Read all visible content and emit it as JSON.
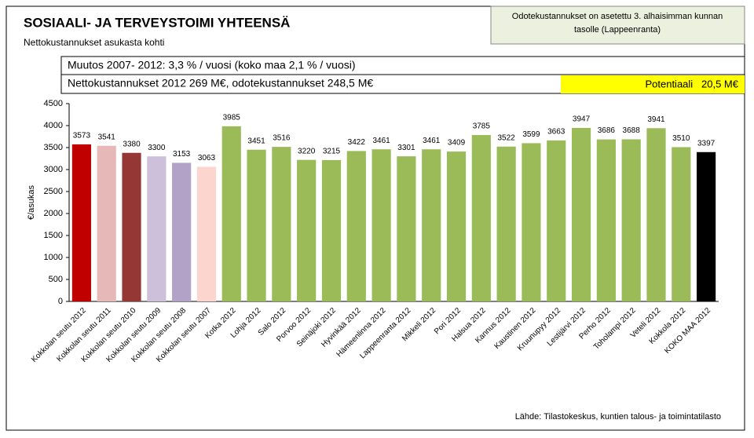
{
  "chart_data": {
    "type": "bar",
    "title": "SOSIAALI- JA TERVEYSTOIMI YHTEENSÄ",
    "subtitle": "Nettokustannukset  asukasta kohti",
    "note": [
      "Odotekustannukset on asetettu 3. alhaisimman kunnan",
      "tasolle (Lappeenranta)"
    ],
    "annotations": [
      "Muutos 2007- 2012: 3,3 % / vuosi (koko maa 2,1 % / vuosi)",
      "Nettokustannukset 2012 269 M€, odotekustannukset 248,5 M€",
      "Potentiaali   20,5 M€"
    ],
    "ylabel": "€/asukas",
    "source": "Lähde: Tilastokeskus, kuntien talous- ja toimintatilasto",
    "categories": [
      "Kokkolan seutu 2012",
      "Kokkolan seutu 2011",
      "Kokkolan seutu 2010",
      "Kokkolan seutu 2009",
      "Kokkolan seutu 2008",
      "Kokkolan seutu 2007",
      "Kotka 2012",
      "Lohja 2012",
      "Salo 2012",
      "Porvoo 2012",
      "Seinäjoki 2012",
      "Hyvinkää 2012",
      "Hämeenlinna 2012",
      "Lappeenranta 2012",
      "Mikkeli 2012",
      "Pori 2012",
      "Halsua 2012",
      "Kannus 2012",
      "Kaustinen 2012",
      "Kruunupyy 2012",
      "Lestijärvi 2012",
      "Perho 2012",
      "Toholampi 2012",
      "Veteli 2012",
      "Kokkola 2012",
      "KOKO MAA 2012"
    ],
    "values": [
      3573,
      3541,
      3380,
      3300,
      3153,
      3063,
      3985,
      3451,
      3516,
      3220,
      3215,
      3422,
      3461,
      3301,
      3461,
      3409,
      3785,
      3522,
      3599,
      3663,
      3947,
      3686,
      3688,
      3941,
      3510,
      3397
    ],
    "colors": [
      "#c00000",
      "#e6b9b8",
      "#953735",
      "#ccc0da",
      "#b3a2c7",
      "#fcd5cf",
      "#9bbb59",
      "#9bbb59",
      "#9bbb59",
      "#9bbb59",
      "#9bbb59",
      "#9bbb59",
      "#9bbb59",
      "#9bbb59",
      "#9bbb59",
      "#9bbb59",
      "#9bbb59",
      "#9bbb59",
      "#9bbb59",
      "#9bbb59",
      "#9bbb59",
      "#9bbb59",
      "#9bbb59",
      "#9bbb59",
      "#9bbb59",
      "#000000"
    ],
    "ylim": [
      0,
      4500
    ],
    "yticks": [
      0,
      500,
      1000,
      1500,
      2000,
      2500,
      3000,
      3500,
      4000,
      4500
    ]
  }
}
